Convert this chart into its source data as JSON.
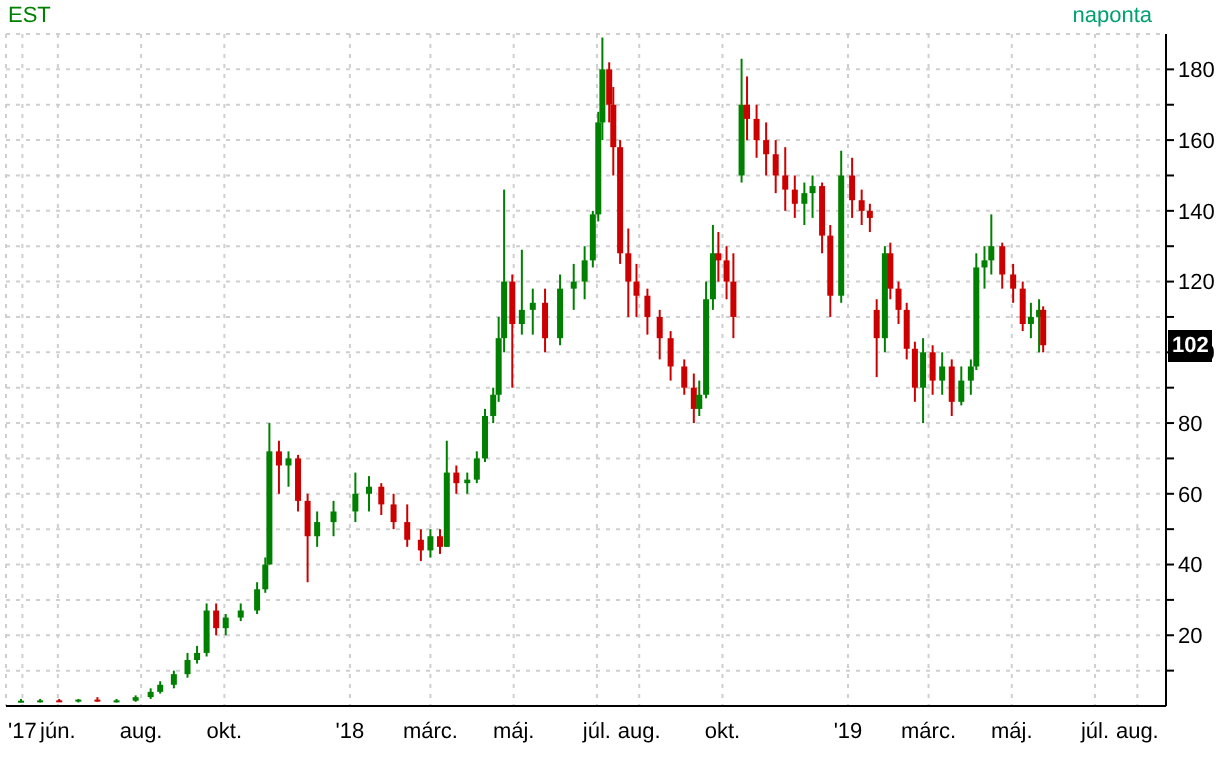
{
  "chart_data": {
    "type": "candlestick",
    "title": "EST",
    "subtitle": "naponta",
    "x": [
      "2017-05-05",
      "2017-05-19",
      "2017-06-02",
      "2017-06-16",
      "2017-06-30",
      "2017-07-14",
      "2017-07-28",
      "2017-08-08",
      "2017-08-15",
      "2017-08-25",
      "2017-09-04",
      "2017-09-11",
      "2017-09-18",
      "2017-09-25",
      "2017-10-02",
      "2017-10-13",
      "2017-10-25",
      "2017-10-31",
      "2017-11-03",
      "2017-11-10",
      "2017-11-17",
      "2017-11-24",
      "2017-12-01",
      "2017-12-08",
      "2017-12-20",
      "2018-01-05",
      "2018-01-15",
      "2018-01-24",
      "2018-02-02",
      "2018-02-12",
      "2018-02-22",
      "2018-03-01",
      "2018-03-08",
      "2018-03-13",
      "2018-03-20",
      "2018-03-28",
      "2018-04-04",
      "2018-04-10",
      "2018-04-16",
      "2018-04-20",
      "2018-04-24",
      "2018-04-30",
      "2018-05-07",
      "2018-05-15",
      "2018-05-24",
      "2018-06-04",
      "2018-06-14",
      "2018-06-22",
      "2018-06-28",
      "2018-07-02",
      "2018-07-05",
      "2018-07-10",
      "2018-07-13",
      "2018-07-18",
      "2018-07-24",
      "2018-07-30",
      "2018-08-07",
      "2018-08-16",
      "2018-08-24",
      "2018-09-03",
      "2018-09-10",
      "2018-09-14",
      "2018-09-19",
      "2018-09-24",
      "2018-09-28",
      "2018-10-04",
      "2018-10-09",
      "2018-10-15",
      "2018-10-19",
      "2018-10-26",
      "2018-11-02",
      "2018-11-09",
      "2018-11-16",
      "2018-11-23",
      "2018-11-30",
      "2018-12-06",
      "2018-12-13",
      "2018-12-19",
      "2018-12-27",
      "2019-01-04",
      "2019-01-11",
      "2019-01-17",
      "2019-01-22",
      "2019-01-28",
      "2019-02-01",
      "2019-02-07",
      "2019-02-13",
      "2019-02-19",
      "2019-02-25",
      "2019-03-04",
      "2019-03-11",
      "2019-03-18",
      "2019-03-25",
      "2019-04-01",
      "2019-04-05",
      "2019-04-11",
      "2019-04-16",
      "2019-04-24",
      "2019-05-02",
      "2019-05-09",
      "2019-05-15",
      "2019-05-21",
      "2019-05-24"
    ],
    "ohlc": [
      [
        1.5,
        2,
        1,
        1.5
      ],
      [
        1.5,
        2,
        1,
        1.6
      ],
      [
        1.6,
        2,
        1.2,
        1.5
      ],
      [
        1.5,
        2,
        1,
        1.8
      ],
      [
        1.8,
        2.5,
        1.2,
        1.4
      ],
      [
        1.4,
        2,
        1,
        1.6
      ],
      [
        1.5,
        3,
        1.2,
        2.5
      ],
      [
        2.5,
        5,
        2,
        4
      ],
      [
        4,
        7,
        3.5,
        6
      ],
      [
        6,
        10,
        5,
        9
      ],
      [
        9,
        15,
        8,
        13
      ],
      [
        13,
        17,
        12,
        15
      ],
      [
        15,
        29,
        14,
        27
      ],
      [
        27,
        29,
        20,
        22
      ],
      [
        22,
        26,
        20,
        25
      ],
      [
        25,
        29,
        24,
        27
      ],
      [
        27,
        35,
        26,
        33
      ],
      [
        33,
        42,
        32,
        40
      ],
      [
        40,
        80,
        40,
        72
      ],
      [
        72,
        75,
        60,
        68
      ],
      [
        68,
        72,
        62,
        70
      ],
      [
        70,
        71,
        55,
        58
      ],
      [
        58,
        60,
        35,
        48
      ],
      [
        48,
        55,
        45,
        52
      ],
      [
        52,
        58,
        48,
        55
      ],
      [
        55,
        66,
        52,
        60
      ],
      [
        60,
        65,
        55,
        62
      ],
      [
        62,
        63,
        54,
        57
      ],
      [
        57,
        60,
        50,
        52
      ],
      [
        52,
        57,
        45,
        47
      ],
      [
        47,
        50,
        41,
        44
      ],
      [
        44,
        50,
        42,
        48
      ],
      [
        48,
        50,
        43,
        45
      ],
      [
        45,
        75,
        45,
        66
      ],
      [
        66,
        68,
        60,
        63
      ],
      [
        63,
        66,
        60,
        64
      ],
      [
        64,
        72,
        63,
        70
      ],
      [
        70,
        84,
        69,
        82
      ],
      [
        82,
        90,
        80,
        88
      ],
      [
        88,
        110,
        86,
        104
      ],
      [
        104,
        146,
        100,
        120
      ],
      [
        120,
        122,
        90,
        108
      ],
      [
        108,
        129,
        105,
        112
      ],
      [
        112,
        118,
        105,
        114
      ],
      [
        114,
        118,
        100,
        104
      ],
      [
        104,
        122,
        102,
        118
      ],
      [
        118,
        125,
        112,
        120
      ],
      [
        120,
        130,
        115,
        126
      ],
      [
        126,
        140,
        124,
        139
      ],
      [
        139,
        168,
        137,
        165
      ],
      [
        165,
        189,
        160,
        180
      ],
      [
        180,
        182,
        165,
        170
      ],
      [
        170,
        175,
        150,
        158
      ],
      [
        158,
        160,
        125,
        128
      ],
      [
        128,
        135,
        110,
        120
      ],
      [
        120,
        125,
        110,
        116
      ],
      [
        116,
        118,
        105,
        110
      ],
      [
        110,
        112,
        98,
        104
      ],
      [
        104,
        106,
        92,
        96
      ],
      [
        96,
        98,
        88,
        90
      ],
      [
        90,
        94,
        80,
        84
      ],
      [
        84,
        92,
        82,
        88
      ],
      [
        88,
        120,
        87,
        115
      ],
      [
        115,
        136,
        112,
        128
      ],
      [
        128,
        134,
        120,
        126
      ],
      [
        126,
        130,
        115,
        120
      ],
      [
        120,
        128,
        104,
        110
      ],
      [
        150,
        183,
        148,
        170
      ],
      [
        170,
        178,
        160,
        166
      ],
      [
        166,
        170,
        155,
        160
      ],
      [
        160,
        165,
        150,
        156
      ],
      [
        156,
        160,
        145,
        150
      ],
      [
        150,
        158,
        140,
        146
      ],
      [
        146,
        150,
        138,
        142
      ],
      [
        142,
        148,
        136,
        145
      ],
      [
        145,
        150,
        138,
        147
      ],
      [
        147,
        148,
        128,
        133
      ],
      [
        133,
        136,
        110,
        116
      ],
      [
        116,
        157,
        114,
        150
      ],
      [
        150,
        155,
        138,
        143
      ],
      [
        143,
        146,
        136,
        140
      ],
      [
        140,
        142,
        134,
        138
      ],
      [
        112,
        115,
        93,
        104
      ],
      [
        104,
        130,
        100,
        128
      ],
      [
        128,
        131,
        115,
        118
      ],
      [
        118,
        120,
        108,
        112
      ],
      [
        112,
        114,
        98,
        101
      ],
      [
        101,
        103,
        86,
        90
      ],
      [
        90,
        104,
        80,
        100
      ],
      [
        100,
        102,
        88,
        92
      ],
      [
        92,
        100,
        88,
        96
      ],
      [
        96,
        98,
        82,
        86
      ],
      [
        86,
        96,
        85,
        92
      ],
      [
        92,
        98,
        88,
        96
      ],
      [
        96,
        128,
        95,
        124
      ],
      [
        124,
        130,
        118,
        126
      ],
      [
        126,
        139,
        122,
        130
      ],
      [
        130,
        131,
        118,
        122
      ],
      [
        122,
        125,
        114,
        118
      ],
      [
        118,
        120,
        106,
        108
      ],
      [
        108,
        114,
        104,
        110
      ],
      [
        110,
        115,
        100,
        112
      ],
      [
        112,
        113,
        100,
        102
      ]
    ],
    "xlim": [
      "2017-04-24",
      "2019-08-22"
    ],
    "xticks": [
      {
        "value": "2017-05-06",
        "label": "'17"
      },
      {
        "value": "2017-06-01",
        "label": "jún."
      },
      {
        "value": "2017-08-01",
        "label": "aug."
      },
      {
        "value": "2017-10-01",
        "label": "okt."
      },
      {
        "value": "2018-01-01",
        "label": "'18"
      },
      {
        "value": "2018-03-01",
        "label": "márc."
      },
      {
        "value": "2018-05-01",
        "label": "máj."
      },
      {
        "value": "2018-07-01",
        "label": "júl."
      },
      {
        "value": "2018-08-01",
        "label": "aug."
      },
      {
        "value": "2018-10-01",
        "label": "okt."
      },
      {
        "value": "2019-01-01",
        "label": "'19"
      },
      {
        "value": "2019-03-01",
        "label": "márc."
      },
      {
        "value": "2019-05-01",
        "label": "máj."
      },
      {
        "value": "2019-07-01",
        "label": "júl."
      },
      {
        "value": "2019-08-01",
        "label": "aug."
      }
    ],
    "ylim": [
      0,
      190
    ],
    "yticks": [
      {
        "value": 10,
        "label": null
      },
      20,
      {
        "value": 30,
        "label": null
      },
      40,
      {
        "value": 50,
        "label": null
      },
      60,
      {
        "value": 70,
        "label": null
      },
      80,
      {
        "value": 90,
        "label": null
      },
      100,
      {
        "value": 110,
        "label": null
      },
      120,
      {
        "value": 130,
        "label": null
      },
      140,
      {
        "value": 150,
        "label": null
      },
      160,
      {
        "value": 170,
        "label": null
      },
      180
    ],
    "grid": true,
    "annotations": [
      {
        "text": "102",
        "y": 102
      }
    ]
  }
}
